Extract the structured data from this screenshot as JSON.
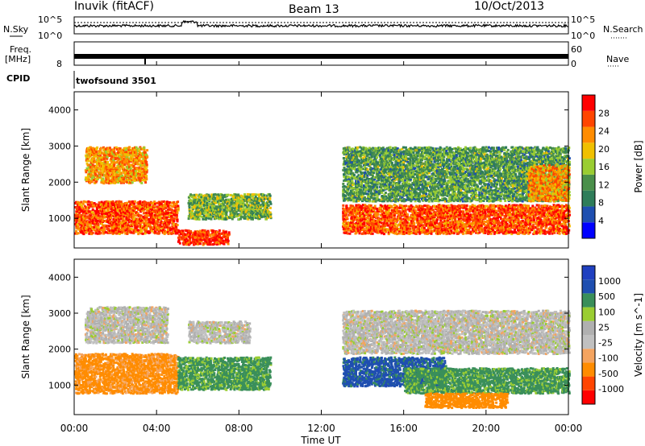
{
  "header": {
    "station": "Inuvik (fitACF)",
    "beam": "Beam 13",
    "date": "10/Oct/2013"
  },
  "top_panels": {
    "noise_label_left": "N.Sky",
    "noise_label_right": "N.Search",
    "noise_ticks_left": [
      "10^5",
      "10^0"
    ],
    "noise_ticks_right": [
      "10^5",
      "10^0"
    ],
    "freq_label": "Freq.",
    "freq_unit": "[MHz]",
    "freq_ticks": [
      "8"
    ],
    "nave_label": "Nave",
    "nave_ticks": [
      "60",
      "0"
    ],
    "cpid_label": "CPID",
    "cpid_value": "twofsound 3501"
  },
  "colors": {
    "power": [
      "#0000ff",
      "#1f4fb0",
      "#2f7d5a",
      "#4a8f4a",
      "#9acd32",
      "#f0c000",
      "#ff8c00",
      "#ff4500",
      "#ff0000"
    ],
    "velocity": [
      "#ff0000",
      "#ff4500",
      "#ff8c00",
      "#f4a460",
      "#c0c0c0",
      "#b0b0b0",
      "#9acd32",
      "#3a8f5a",
      "#1f4fb0",
      "#2040c0"
    ]
  },
  "chart_data": [
    {
      "type": "heatmap",
      "panel": "power",
      "ylabel": "Slant Range [km]",
      "xlabel": "Time UT",
      "ylim": [
        180,
        4500
      ],
      "xlim": [
        0,
        24
      ],
      "xticks": [
        "00:00",
        "04:00",
        "08:00",
        "12:00",
        "16:00",
        "20:00",
        "00:00"
      ],
      "yticks": [
        1000,
        2000,
        3000,
        4000
      ],
      "colorbar_label": "Power [dB]",
      "colorbar_ticks": [
        "4",
        "8",
        "12",
        "16",
        "20",
        "24",
        "28"
      ],
      "regions": [
        {
          "t0": 0.0,
          "t1": 5.0,
          "r0": 600,
          "r1": 1500,
          "level": 26
        },
        {
          "t0": 0.5,
          "t1": 3.5,
          "r0": 2000,
          "r1": 3000,
          "level": 22
        },
        {
          "t0": 5.0,
          "t1": 7.5,
          "r0": 300,
          "r1": 700,
          "level": 28
        },
        {
          "t0": 5.5,
          "t1": 9.5,
          "r0": 1000,
          "r1": 1700,
          "level": 14
        },
        {
          "t0": 13.0,
          "t1": 24.0,
          "r0": 600,
          "r1": 1400,
          "level": 26
        },
        {
          "t0": 13.0,
          "t1": 24.0,
          "r0": 1500,
          "r1": 3000,
          "level": 12
        },
        {
          "t0": 22.0,
          "t1": 24.0,
          "r0": 1500,
          "r1": 2500,
          "level": 22
        }
      ]
    },
    {
      "type": "heatmap",
      "panel": "velocity",
      "ylabel": "Slant Range [km]",
      "xlabel": "Time UT",
      "ylim": [
        180,
        4500
      ],
      "xlim": [
        0,
        24
      ],
      "xticks": [
        "00:00",
        "04:00",
        "08:00",
        "12:00",
        "16:00",
        "20:00",
        "00:00"
      ],
      "yticks": [
        1000,
        2000,
        3000,
        4000
      ],
      "colorbar_label": "Velocity [m s^-1]",
      "colorbar_ticks": [
        "1000",
        "500",
        "100",
        "25",
        "-25",
        "-100",
        "-500",
        "-1000"
      ],
      "regions": [
        {
          "t0": 0.0,
          "t1": 5.0,
          "r0": 800,
          "r1": 1900,
          "level": -150
        },
        {
          "t0": 0.5,
          "t1": 4.5,
          "r0": 2200,
          "r1": 3200,
          "level": 0
        },
        {
          "t0": 5.0,
          "t1": 9.5,
          "r0": 900,
          "r1": 1800,
          "level": 150
        },
        {
          "t0": 5.5,
          "t1": 8.5,
          "r0": 2200,
          "r1": 2800,
          "level": 0
        },
        {
          "t0": 13.0,
          "t1": 18.0,
          "r0": 1000,
          "r1": 1800,
          "level": 700
        },
        {
          "t0": 16.0,
          "t1": 24.0,
          "r0": 800,
          "r1": 1500,
          "level": 150
        },
        {
          "t0": 17.0,
          "t1": 21.0,
          "r0": 400,
          "r1": 800,
          "level": -300
        },
        {
          "t0": 13.0,
          "t1": 24.0,
          "r0": 1900,
          "r1": 3100,
          "level": 0
        }
      ]
    }
  ]
}
